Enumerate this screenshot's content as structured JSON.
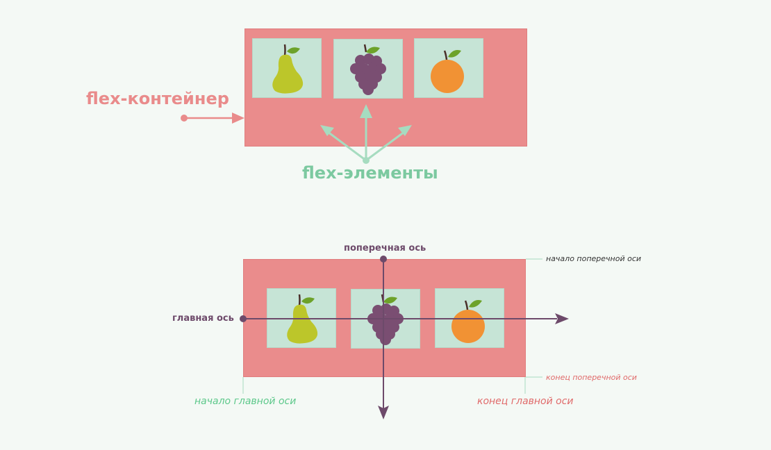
{
  "top": {
    "container_label": "flex-контейнер",
    "elements_label": "flex-элементы",
    "items": [
      {
        "icon": "pear-icon"
      },
      {
        "icon": "grapes-icon"
      },
      {
        "icon": "orange-icon"
      }
    ]
  },
  "bottom": {
    "cross_axis_label": "поперечная ось",
    "main_axis_label": "главная ось",
    "cross_start_label": "начало поперечной оси",
    "cross_end_label": "конец поперечной оси",
    "main_start_label": "начало главной оси",
    "main_end_label": "конец главной оси",
    "items": [
      {
        "icon": "pear-icon"
      },
      {
        "icon": "grapes-icon"
      },
      {
        "icon": "orange-icon"
      }
    ]
  },
  "colors": {
    "background": "#f4f9f5",
    "container": "#ea8c8c",
    "item": "#c6e4d6",
    "container_label": "#e98b8b",
    "elements_label": "#7cc9a0",
    "axis": "#6d4a6a",
    "start_label": "#5cc88a",
    "end_label": "#e06a6a",
    "pear": "#bcc62a",
    "grapes": "#7a4e72",
    "orange": "#f19234",
    "leaf": "#6da22a"
  }
}
